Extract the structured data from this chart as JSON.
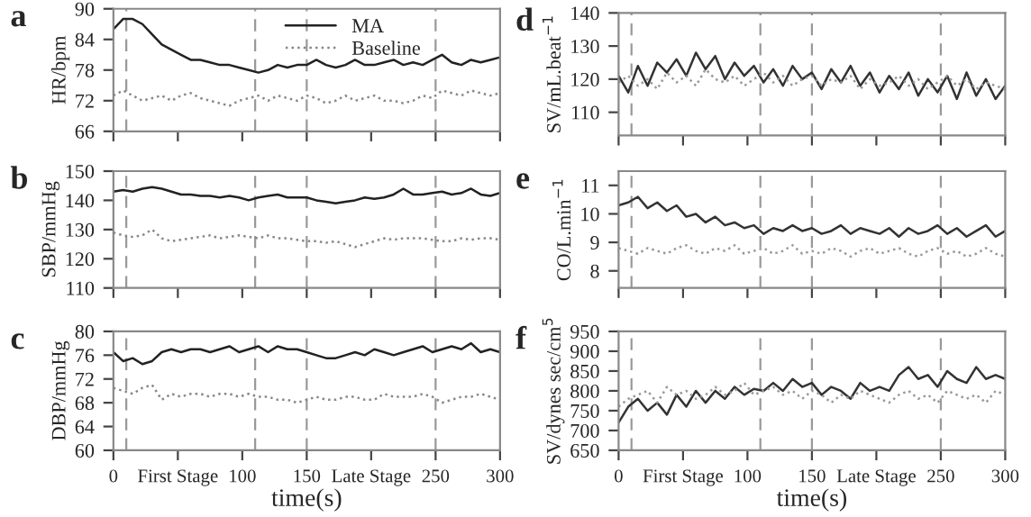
{
  "chart_data": [
    {
      "type": "line",
      "title": "a",
      "ylabel": "HR/bpm",
      "x": [
        0,
        7.5,
        15,
        22.5,
        30,
        37.5,
        45,
        52.5,
        60,
        67.5,
        75,
        82.5,
        90,
        97.5,
        105,
        112.5,
        120,
        127.5,
        135,
        142.5,
        150,
        157.5,
        165,
        172.5,
        180,
        187.5,
        195,
        202.5,
        210,
        217.5,
        225,
        232.5,
        240,
        247.5,
        255,
        262.5,
        270,
        277.5,
        285,
        292.5,
        300
      ],
      "series": [
        {
          "name": "MA",
          "color": "#222222",
          "line_style": "solid",
          "values": [
            86,
            88,
            88,
            87,
            85,
            83,
            82,
            81,
            80,
            80,
            79.5,
            79,
            79,
            78.5,
            78,
            77.5,
            78,
            79,
            78.5,
            79,
            79,
            80,
            79,
            78.5,
            79,
            80,
            79,
            79,
            79.5,
            80,
            79,
            79.5,
            79,
            80,
            81,
            79.5,
            79,
            80,
            79.5,
            80,
            80.5
          ]
        },
        {
          "name": "Baseline",
          "color": "#888888",
          "line_style": "dotted",
          "values": [
            73,
            74,
            73,
            72,
            72.5,
            73,
            72,
            73,
            73.5,
            72.5,
            72,
            71.5,
            71,
            72,
            72.5,
            73,
            72,
            73,
            72.5,
            72,
            73,
            72.5,
            71.5,
            72,
            73,
            72,
            72.5,
            73,
            72,
            72,
            71.5,
            72,
            73,
            72.5,
            74,
            73.5,
            73,
            74,
            73.5,
            73,
            73.5
          ]
        }
      ],
      "xlim": [
        0,
        300
      ],
      "xticks": [
        {
          "value": 0,
          "label": null
        },
        {
          "value": 50,
          "label": null
        },
        {
          "value": 100,
          "label": null
        },
        {
          "value": 150,
          "label": null
        },
        {
          "value": 200,
          "label": null
        },
        {
          "value": 250,
          "label": null
        },
        {
          "value": 300,
          "label": null
        }
      ],
      "ylim": [
        66,
        90
      ],
      "yticks": [
        66,
        72,
        78,
        84,
        90
      ],
      "tick_labels": "y",
      "grid": false,
      "legend": "top",
      "ref_lines": [
        {
          "axis": "x",
          "value": 10,
          "color": "#999999",
          "line_style": "dashed"
        },
        {
          "axis": "x",
          "value": 110,
          "color": "#999999",
          "line_style": "dashed"
        },
        {
          "axis": "x",
          "value": 150,
          "color": "#999999",
          "line_style": "dashed"
        },
        {
          "axis": "x",
          "value": 250,
          "color": "#999999",
          "line_style": "dashed"
        }
      ]
    },
    {
      "type": "line",
      "title": "b",
      "ylabel": "SBP/mmHg",
      "x": [
        0,
        7.5,
        15,
        22.5,
        30,
        37.5,
        45,
        52.5,
        60,
        67.5,
        75,
        82.5,
        90,
        97.5,
        105,
        112.5,
        120,
        127.5,
        135,
        142.5,
        150,
        157.5,
        165,
        172.5,
        180,
        187.5,
        195,
        202.5,
        210,
        217.5,
        225,
        232.5,
        240,
        247.5,
        255,
        262.5,
        270,
        277.5,
        285,
        292.5,
        300
      ],
      "series": [
        {
          "color": "#222222",
          "line_style": "solid",
          "values": [
            143,
            143.5,
            143,
            144,
            144.5,
            144,
            143,
            142,
            142,
            141.5,
            141.5,
            141,
            141.5,
            141,
            140,
            141,
            141.5,
            142,
            141,
            141,
            141,
            140,
            139.5,
            139,
            139.5,
            140,
            141,
            140.5,
            141,
            142,
            144,
            142,
            142,
            142.5,
            143,
            142,
            142.5,
            144,
            142,
            141.5,
            142.5
          ]
        },
        {
          "color": "#888888",
          "line_style": "dotted",
          "values": [
            129,
            128,
            127.5,
            128,
            130,
            127,
            126,
            126.5,
            127,
            127.5,
            128,
            127,
            127.5,
            128,
            127.5,
            127,
            128,
            127,
            127,
            126.5,
            126,
            126,
            125.5,
            126,
            125,
            124,
            125,
            126,
            127,
            126.5,
            127,
            127,
            127,
            126.5,
            126,
            126,
            127,
            126.5,
            127,
            127,
            126.5
          ]
        }
      ],
      "xlim": [
        0,
        300
      ],
      "xticks": [
        {
          "value": 0,
          "label": null
        },
        {
          "value": 50,
          "label": null
        },
        {
          "value": 100,
          "label": null
        },
        {
          "value": 150,
          "label": null
        },
        {
          "value": 200,
          "label": null
        },
        {
          "value": 250,
          "label": null
        },
        {
          "value": 300,
          "label": null
        }
      ],
      "ylim": [
        110,
        150
      ],
      "yticks": [
        110,
        120,
        130,
        140,
        150
      ],
      "tick_labels": "y",
      "grid": false,
      "ref_lines": [
        {
          "axis": "x",
          "value": 10,
          "color": "#999999",
          "line_style": "dashed"
        },
        {
          "axis": "x",
          "value": 110,
          "color": "#999999",
          "line_style": "dashed"
        },
        {
          "axis": "x",
          "value": 150,
          "color": "#999999",
          "line_style": "dashed"
        },
        {
          "axis": "x",
          "value": 250,
          "color": "#999999",
          "line_style": "dashed"
        }
      ]
    },
    {
      "type": "line",
      "title": "c",
      "ylabel": "DBP/mmHg",
      "xlabel": "time(s)",
      "x": [
        0,
        7.5,
        15,
        22.5,
        30,
        37.5,
        45,
        52.5,
        60,
        67.5,
        75,
        82.5,
        90,
        97.5,
        105,
        112.5,
        120,
        127.5,
        135,
        142.5,
        150,
        157.5,
        165,
        172.5,
        180,
        187.5,
        195,
        202.5,
        210,
        217.5,
        225,
        232.5,
        240,
        247.5,
        255,
        262.5,
        270,
        277.5,
        285,
        292.5,
        300
      ],
      "series": [
        {
          "color": "#222222",
          "line_style": "solid",
          "values": [
            76.5,
            75,
            75.5,
            74.5,
            75,
            76.5,
            77,
            76.5,
            77,
            77,
            76.5,
            77,
            77.5,
            76.5,
            77,
            77.5,
            76.5,
            77.5,
            77,
            77,
            76.5,
            76,
            75.5,
            75.5,
            76,
            76.5,
            76,
            77,
            76.5,
            76,
            76.5,
            77,
            77.5,
            76.5,
            77,
            77.5,
            77,
            78,
            76.5,
            77,
            76.5
          ]
        },
        {
          "color": "#888888",
          "line_style": "dotted",
          "values": [
            70.5,
            70,
            69.5,
            70.5,
            71,
            68.5,
            69.5,
            69,
            69.5,
            69.5,
            69,
            69.5,
            69.5,
            69,
            69.5,
            69,
            69,
            68.5,
            68.5,
            68,
            68.5,
            69,
            68.5,
            68.5,
            69,
            69,
            68.5,
            68.5,
            69.5,
            69,
            69,
            69,
            69.5,
            69,
            68,
            68.5,
            69,
            69,
            69.5,
            69,
            68.5
          ]
        }
      ],
      "xlim": [
        0,
        300
      ],
      "xticks": [
        0,
        {
          "value": 50,
          "label": "First Stage"
        },
        100,
        150,
        {
          "value": 200,
          "label": "Late Stage"
        },
        250,
        300
      ],
      "ylim": [
        60,
        80
      ],
      "yticks": [
        60,
        64,
        68,
        72,
        76,
        80
      ],
      "grid": false,
      "ref_lines": [
        {
          "axis": "x",
          "value": 10,
          "color": "#999999",
          "line_style": "dashed"
        },
        {
          "axis": "x",
          "value": 110,
          "color": "#999999",
          "line_style": "dashed"
        },
        {
          "axis": "x",
          "value": 150,
          "color": "#999999",
          "line_style": "dashed"
        },
        {
          "axis": "x",
          "value": 250,
          "color": "#999999",
          "line_style": "dashed"
        }
      ]
    },
    {
      "type": "line",
      "title": "d",
      "ylabel": "SV/mL.beat$^{−1}$",
      "x": [
        0,
        7.5,
        15,
        22.5,
        30,
        37.5,
        45,
        52.5,
        60,
        67.5,
        75,
        82.5,
        90,
        97.5,
        105,
        112.5,
        120,
        127.5,
        135,
        142.5,
        150,
        157.5,
        165,
        172.5,
        180,
        187.5,
        195,
        202.5,
        210,
        217.5,
        225,
        232.5,
        240,
        247.5,
        255,
        262.5,
        270,
        277.5,
        285,
        292.5,
        300
      ],
      "series": [
        {
          "color": "#333333",
          "line_style": "solid",
          "values": [
            121,
            116,
            124,
            118,
            125,
            122,
            126,
            121,
            128,
            123,
            127,
            120,
            125,
            121,
            124,
            119,
            123,
            118,
            124,
            120,
            122,
            117,
            123,
            119,
            124,
            118,
            122,
            116,
            121,
            117,
            122,
            115,
            120,
            116,
            121,
            114,
            122,
            115,
            120,
            114,
            118
          ]
        },
        {
          "color": "#999999",
          "line_style": "dotted",
          "values": [
            119,
            121,
            118,
            120,
            117,
            122,
            119,
            121,
            118,
            123,
            120,
            119,
            121,
            118,
            120,
            122,
            119,
            121,
            118,
            120,
            121,
            118,
            120,
            119,
            121,
            117,
            120,
            118,
            119,
            121,
            118,
            120,
            117,
            119,
            121,
            118,
            120,
            117,
            119,
            118,
            117
          ]
        }
      ],
      "xlim": [
        0,
        300
      ],
      "xticks": [
        {
          "value": 0,
          "label": null
        },
        {
          "value": 50,
          "label": null
        },
        {
          "value": 100,
          "label": null
        },
        {
          "value": 150,
          "label": null
        },
        {
          "value": 200,
          "label": null
        },
        {
          "value": 250,
          "label": null
        },
        {
          "value": 300,
          "label": null
        }
      ],
      "ylim": [
        103,
        140
      ],
      "yticks": [
        110,
        120,
        130,
        140
      ],
      "tick_labels": "y",
      "grid": false,
      "ref_lines": [
        {
          "axis": "x",
          "value": 10,
          "color": "#999999",
          "line_style": "dashed"
        },
        {
          "axis": "x",
          "value": 110,
          "color": "#999999",
          "line_style": "dashed"
        },
        {
          "axis": "x",
          "value": 150,
          "color": "#999999",
          "line_style": "dashed"
        },
        {
          "axis": "x",
          "value": 250,
          "color": "#999999",
          "line_style": "dashed"
        }
      ]
    },
    {
      "type": "line",
      "title": "e",
      "ylabel": "CO/L.min$^{−1}$",
      "x": [
        0,
        7.5,
        15,
        22.5,
        30,
        37.5,
        45,
        52.5,
        60,
        67.5,
        75,
        82.5,
        90,
        97.5,
        105,
        112.5,
        120,
        127.5,
        135,
        142.5,
        150,
        157.5,
        165,
        172.5,
        180,
        187.5,
        195,
        202.5,
        210,
        217.5,
        225,
        232.5,
        240,
        247.5,
        255,
        262.5,
        270,
        277.5,
        285,
        292.5,
        300
      ],
      "series": [
        {
          "color": "#333333",
          "line_style": "solid",
          "values": [
            10.3,
            10.4,
            10.6,
            10.2,
            10.4,
            10.1,
            10.3,
            9.9,
            10.0,
            9.7,
            9.9,
            9.6,
            9.7,
            9.5,
            9.6,
            9.3,
            9.5,
            9.4,
            9.6,
            9.4,
            9.5,
            9.3,
            9.4,
            9.6,
            9.3,
            9.5,
            9.4,
            9.3,
            9.5,
            9.2,
            9.5,
            9.3,
            9.4,
            9.6,
            9.3,
            9.5,
            9.2,
            9.4,
            9.6,
            9.2,
            9.4
          ]
        },
        {
          "color": "#999999",
          "line_style": "dotted",
          "values": [
            8.8,
            8.7,
            8.6,
            8.8,
            8.7,
            8.6,
            8.8,
            8.9,
            8.7,
            8.6,
            8.8,
            8.7,
            8.9,
            8.6,
            8.7,
            8.8,
            8.6,
            8.7,
            8.9,
            8.6,
            8.7,
            8.6,
            8.8,
            8.7,
            8.5,
            8.7,
            8.8,
            8.6,
            8.7,
            8.8,
            8.6,
            8.5,
            8.7,
            8.8,
            8.6,
            8.7,
            8.5,
            8.6,
            8.8,
            8.6,
            8.5
          ]
        }
      ],
      "xlim": [
        0,
        300
      ],
      "xticks": [
        {
          "value": 0,
          "label": null
        },
        {
          "value": 50,
          "label": null
        },
        {
          "value": 100,
          "label": null
        },
        {
          "value": 150,
          "label": null
        },
        {
          "value": 200,
          "label": null
        },
        {
          "value": 250,
          "label": null
        },
        {
          "value": 300,
          "label": null
        }
      ],
      "ylim": [
        7.4,
        11.5
      ],
      "yticks": [
        8,
        9,
        10,
        11
      ],
      "tick_labels": "y",
      "grid": false,
      "ref_lines": [
        {
          "axis": "x",
          "value": 10,
          "color": "#999999",
          "line_style": "dashed"
        },
        {
          "axis": "x",
          "value": 110,
          "color": "#999999",
          "line_style": "dashed"
        },
        {
          "axis": "x",
          "value": 150,
          "color": "#999999",
          "line_style": "dashed"
        },
        {
          "axis": "x",
          "value": 250,
          "color": "#999999",
          "line_style": "dashed"
        }
      ]
    },
    {
      "type": "line",
      "title": "f",
      "ylabel": "SV/dynes sec/cm$^{5}$",
      "xlabel": "time(s)",
      "x": [
        0,
        7.5,
        15,
        22.5,
        30,
        37.5,
        45,
        52.5,
        60,
        67.5,
        75,
        82.5,
        90,
        97.5,
        105,
        112.5,
        120,
        127.5,
        135,
        142.5,
        150,
        157.5,
        165,
        172.5,
        180,
        187.5,
        195,
        202.5,
        210,
        217.5,
        225,
        232.5,
        240,
        247.5,
        255,
        262.5,
        270,
        277.5,
        285,
        292.5,
        300
      ],
      "series": [
        {
          "color": "#333333",
          "line_style": "solid",
          "values": [
            720,
            760,
            780,
            750,
            770,
            740,
            790,
            760,
            800,
            770,
            800,
            780,
            810,
            790,
            805,
            800,
            820,
            800,
            830,
            810,
            820,
            790,
            810,
            800,
            780,
            820,
            800,
            810,
            800,
            840,
            860,
            830,
            840,
            810,
            850,
            830,
            820,
            860,
            830,
            840,
            830
          ]
        },
        {
          "color": "#999999",
          "line_style": "dotted",
          "values": [
            760,
            780,
            790,
            800,
            770,
            810,
            790,
            800,
            780,
            790,
            810,
            790,
            800,
            820,
            790,
            800,
            810,
            790,
            800,
            780,
            800,
            790,
            770,
            790,
            780,
            800,
            790,
            780,
            770,
            790,
            800,
            780,
            790,
            770,
            800,
            790,
            780,
            790,
            770,
            800,
            790
          ]
        }
      ],
      "xlim": [
        0,
        300
      ],
      "xticks": [
        0,
        {
          "value": 50,
          "label": "First Stage"
        },
        100,
        150,
        {
          "value": 200,
          "label": "Late Stage"
        },
        250,
        300
      ],
      "ylim": [
        650,
        950
      ],
      "yticks": [
        650,
        700,
        750,
        800,
        850,
        900,
        950
      ],
      "grid": false,
      "ref_lines": [
        {
          "axis": "x",
          "value": 10,
          "color": "#999999",
          "line_style": "dashed"
        },
        {
          "axis": "x",
          "value": 110,
          "color": "#999999",
          "line_style": "dashed"
        },
        {
          "axis": "x",
          "value": 150,
          "color": "#999999",
          "line_style": "dashed"
        },
        {
          "axis": "x",
          "value": 250,
          "color": "#999999",
          "line_style": "dashed"
        }
      ]
    }
  ]
}
